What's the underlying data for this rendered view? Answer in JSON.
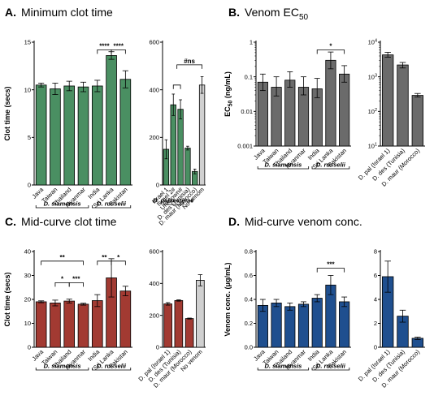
{
  "chart_data": [
    {
      "type": "bar",
      "letter": "A.",
      "title": "Minimum clot time",
      "ylabel": "Clot time (secs)",
      "scale": "linear",
      "left": {
        "ylim": [
          0,
          15
        ],
        "yticks": [
          "0",
          "5",
          "10",
          "15"
        ],
        "categories": [
          "Java",
          "Taiwan",
          "Thailand",
          "Myanmar",
          "India",
          "Sri Lanka",
          "Pakistan"
        ],
        "values": [
          10.5,
          10.1,
          10.4,
          10.3,
          10.4,
          13.6,
          11.1
        ],
        "errors": [
          0.2,
          0.6,
          0.5,
          0.5,
          0.6,
          0.4,
          0.9
        ],
        "color": "#4a8f62",
        "groups": [
          {
            "label": "D. siamensis",
            "from": 0,
            "to": 3
          },
          {
            "label": "D. russelii",
            "from": 4,
            "to": 6
          }
        ],
        "significance": [
          {
            "from": 4,
            "to": 5,
            "label": "****",
            "level": 14.2
          },
          {
            "from": 5,
            "to": 6,
            "label": "****",
            "level": 14.2
          }
        ]
      },
      "right": {
        "ylim": [
          0,
          600
        ],
        "yticks": [
          "0",
          "200",
          "400",
          "600"
        ],
        "categories": [
          "Israel 1",
          "Israel 2#",
          "Unknown#",
          "D. des (Tunisia)",
          "D. maur (Morocco)",
          "No venom"
        ],
        "values": [
          150,
          337,
          318,
          155,
          57,
          420
        ],
        "errors": [
          40,
          45,
          40,
          8,
          10,
          35
        ],
        "colors": [
          "#4a8f62",
          "#4a8f62",
          "#4a8f62",
          "#4a8f62",
          "#4a8f62",
          "#d0d0d0"
        ],
        "groups": [
          {
            "label": "D. palaestinae",
            "from": 0,
            "to": 2
          }
        ],
        "significance": [
          {
            "from": 1,
            "to": 2,
            "label": "",
            "level": 420
          },
          {
            "from": 1.5,
            "to": 5,
            "label": "#ns",
            "level": 505
          }
        ]
      }
    },
    {
      "type": "bar",
      "letter": "B.",
      "title": "Venom EC",
      "title_sub": "50",
      "ylabel": "EC",
      "ylabel_sub": "50",
      "ylabel_tail": " (ng/mL)",
      "scale": "log",
      "left": {
        "ylim": [
          0.001,
          1
        ],
        "yticks": [
          "0.001",
          "0.01",
          "0.1",
          "1"
        ],
        "categories": [
          "Java",
          "Taiwan",
          "Thailand",
          "Myanmar",
          "India",
          "Sri Lanka",
          "Pakistan"
        ],
        "values": [
          0.07,
          0.05,
          0.08,
          0.05,
          0.045,
          0.3,
          0.12
        ],
        "errors_low": [
          0.04,
          0.028,
          0.05,
          0.03,
          0.025,
          0.17,
          0.07
        ],
        "errors_high": [
          0.12,
          0.1,
          0.14,
          0.1,
          0.09,
          0.52,
          0.21
        ],
        "color": "#6b6b6b",
        "groups": [
          {
            "label": "D. siamensis",
            "from": 0,
            "to": 3
          },
          {
            "label": "D. russelii",
            "from": 4,
            "to": 6
          }
        ],
        "significance": [
          {
            "from": 4,
            "to": 6,
            "label": "*",
            "level": 0.6
          }
        ]
      },
      "right": {
        "ylim": [
          10,
          10000
        ],
        "yticks": [
          "10",
          "10",
          "10",
          "10"
        ],
        "ytick_exps": [
          "1",
          "2",
          "3",
          "4"
        ],
        "categories": [
          "D. pal (Israel 1)",
          "D. des (Tunisia)",
          "D. maur (Morocco)"
        ],
        "values": [
          4300,
          2200,
          290
        ],
        "errors_low": [
          3700,
          1800,
          260
        ],
        "errors_high": [
          5100,
          2600,
          330
        ],
        "colors": [
          "#6b6b6b",
          "#6b6b6b",
          "#6b6b6b"
        ],
        "groups": [],
        "significance": []
      }
    },
    {
      "type": "bar",
      "letter": "C.",
      "title": "Mid-curve clot time",
      "ylabel": "Clot time (secs)",
      "scale": "linear",
      "left": {
        "ylim": [
          0,
          40
        ],
        "yticks": [
          "0",
          "10",
          "20",
          "30",
          "40"
        ],
        "categories": [
          "Java",
          "Taiwan",
          "Thailand",
          "Myanmar",
          "India",
          "Sri Lanka",
          "Pakistan"
        ],
        "values": [
          19,
          18.5,
          19.3,
          18,
          19.5,
          29,
          23.5
        ],
        "errors": [
          0.4,
          1.2,
          0.8,
          0.4,
          2.5,
          8,
          2
        ],
        "color": "#a23a32",
        "groups": [
          {
            "label": "D. siamensis",
            "from": 0,
            "to": 3
          },
          {
            "label": "D. russelii",
            "from": 4,
            "to": 6
          }
        ],
        "significance": [
          {
            "from": 0,
            "to": 3,
            "label": "**",
            "level": 36
          },
          {
            "from": 1,
            "to": 2,
            "label": "*",
            "level": 27
          },
          {
            "from": 2,
            "to": 3,
            "label": "***",
            "level": 27
          },
          {
            "from": 4,
            "to": 5,
            "label": "**",
            "level": 36
          },
          {
            "from": 5,
            "to": 6,
            "label": "*",
            "level": 36
          }
        ]
      },
      "right": {
        "ylim": [
          0,
          600
        ],
        "yticks": [
          "0",
          "200",
          "400",
          "600"
        ],
        "categories": [
          "D. pal (Israel 1)",
          "D. des (Tunisia)",
          "D. maur (Morocco)",
          "No venom"
        ],
        "values": [
          272,
          293,
          180,
          420
        ],
        "errors": [
          8,
          4,
          3,
          35
        ],
        "colors": [
          "#a23a32",
          "#a23a32",
          "#a23a32",
          "#d0d0d0"
        ],
        "groups": [],
        "significance": []
      }
    },
    {
      "type": "bar",
      "letter": "D.",
      "title": "Mid-curve venom conc.",
      "ylabel": "Venom conc. (μg/mL)",
      "scale": "linear",
      "left": {
        "ylim": [
          0,
          0.8
        ],
        "yticks": [
          "0.0",
          "0.2",
          "0.4",
          "0.6",
          "0.8"
        ],
        "categories": [
          "Java",
          "Taiwan",
          "Thailand",
          "Myanmar",
          "India",
          "Sri Lanka",
          "Pakistan"
        ],
        "values": [
          0.35,
          0.37,
          0.34,
          0.36,
          0.41,
          0.52,
          0.38
        ],
        "errors": [
          0.05,
          0.03,
          0.03,
          0.02,
          0.03,
          0.08,
          0.04
        ],
        "color": "#1f4f8f",
        "groups": [
          {
            "label": "D. siamensis",
            "from": 0,
            "to": 3
          },
          {
            "label": "D. russelii",
            "from": 4,
            "to": 6
          }
        ],
        "significance": [
          {
            "from": 4,
            "to": 6,
            "label": "***",
            "level": 0.66
          }
        ]
      },
      "right": {
        "ylim": [
          0,
          8
        ],
        "yticks": [
          "0",
          "2",
          "4",
          "6",
          "8"
        ],
        "categories": [
          "D. pal (Israel 1)",
          "D. des (Tunisia)",
          "D. maur (Morocco)"
        ],
        "values": [
          5.9,
          2.6,
          0.75
        ],
        "errors": [
          1.3,
          0.5,
          0.1
        ],
        "colors": [
          "#1f4f8f",
          "#1f4f8f",
          "#1f4f8f"
        ],
        "groups": [],
        "significance": []
      }
    }
  ]
}
